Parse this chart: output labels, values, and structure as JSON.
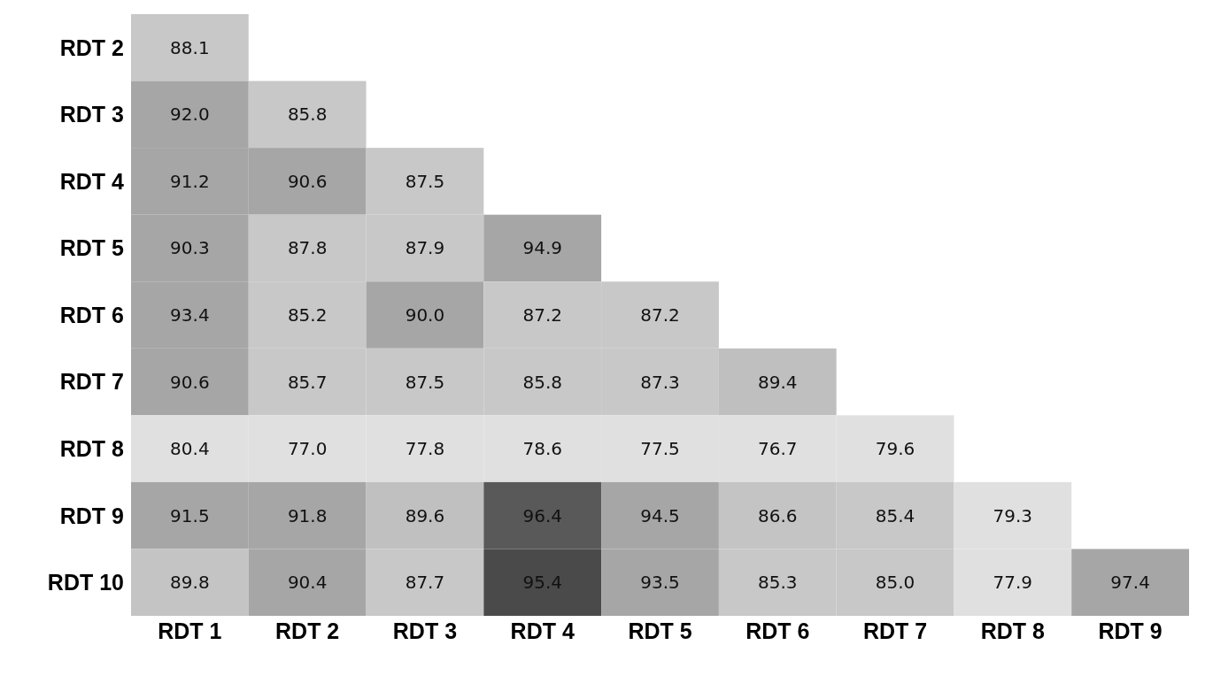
{
  "chart_data": {
    "type": "heatmap",
    "categories": [
      "RDT 1",
      "RDT 2",
      "RDT 3",
      "RDT 4",
      "RDT 5",
      "RDT 6",
      "RDT 7",
      "RDT 8",
      "RDT 9"
    ],
    "y_categories": [
      "RDT 2",
      "RDT 3",
      "RDT 4",
      "RDT 5",
      "RDT 6",
      "RDT 7",
      "RDT 8",
      "RDT 9",
      "RDT 10"
    ],
    "cells": [
      [
        88.1,
        null,
        null,
        null,
        null,
        null,
        null,
        null,
        null
      ],
      [
        92.0,
        85.8,
        null,
        null,
        null,
        null,
        null,
        null,
        null
      ],
      [
        91.2,
        90.6,
        87.5,
        null,
        null,
        null,
        null,
        null,
        null
      ],
      [
        90.3,
        87.8,
        87.9,
        94.9,
        null,
        null,
        null,
        null,
        null
      ],
      [
        93.4,
        85.2,
        90.0,
        87.2,
        87.2,
        null,
        null,
        null,
        null
      ],
      [
        90.6,
        85.7,
        87.5,
        85.8,
        87.3,
        89.4,
        null,
        null,
        null
      ],
      [
        80.4,
        77.0,
        77.8,
        78.6,
        77.5,
        76.7,
        79.6,
        null,
        null
      ],
      [
        91.5,
        91.8,
        89.6,
        96.4,
        94.5,
        86.6,
        85.4,
        79.3,
        null
      ],
      [
        89.8,
        90.4,
        87.7,
        95.4,
        93.5,
        85.3,
        85.0,
        77.9,
        97.4
      ]
    ],
    "cell_labels": [
      [
        "88.1",
        null,
        null,
        null,
        null,
        null,
        null,
        null,
        null
      ],
      [
        "92.0",
        "85.8",
        null,
        null,
        null,
        null,
        null,
        null,
        null
      ],
      [
        "91.2",
        "90.6",
        "87.5",
        null,
        null,
        null,
        null,
        null,
        null
      ],
      [
        "90.3",
        "87.8",
        "87.9",
        "94.9",
        null,
        null,
        null,
        null,
        null
      ],
      [
        "93.4",
        "85.2",
        "90.0",
        "87.2",
        "87.2",
        null,
        null,
        null,
        null
      ],
      [
        "90.6",
        "85.7",
        "87.5",
        "85.8",
        "87.3",
        "89.4",
        null,
        null,
        null
      ],
      [
        "80.4",
        "77.0",
        "77.8",
        "78.6",
        "77.5",
        "76.7",
        "79.6",
        null,
        null
      ],
      [
        "91.5",
        "91.8",
        "89.6",
        "96.4",
        "94.5",
        "86.6",
        "85.4",
        "79.3",
        null
      ],
      [
        "89.8",
        "90.4",
        "87.7",
        "95.4",
        "93.5",
        "85.3",
        "85.0",
        "77.9",
        "97.4"
      ]
    ],
    "colors": [
      [
        "#c8c8c8",
        null,
        null,
        null,
        null,
        null,
        null,
        null,
        null
      ],
      [
        "#a6a6a6",
        "#c8c8c8",
        null,
        null,
        null,
        null,
        null,
        null,
        null
      ],
      [
        "#a6a6a6",
        "#a6a6a6",
        "#c8c8c8",
        null,
        null,
        null,
        null,
        null,
        null
      ],
      [
        "#a6a6a6",
        "#c8c8c8",
        "#c8c8c8",
        "#a6a6a6",
        null,
        null,
        null,
        null,
        null
      ],
      [
        "#a6a6a6",
        "#c8c8c8",
        "#a6a6a6",
        "#c8c8c8",
        "#c8c8c8",
        null,
        null,
        null,
        null
      ],
      [
        "#a6a6a6",
        "#c8c8c8",
        "#c8c8c8",
        "#c8c8c8",
        "#c8c8c8",
        "#bfbfbf",
        null,
        null,
        null
      ],
      [
        "#e0e0e0",
        "#e0e0e0",
        "#e0e0e0",
        "#e0e0e0",
        "#e0e0e0",
        "#e0e0e0",
        "#e0e0e0",
        null,
        null
      ],
      [
        "#a6a6a6",
        "#a6a6a6",
        "#c0c0c0",
        "#595959",
        "#a6a6a6",
        "#c4c4c4",
        "#c8c8c8",
        "#e0e0e0",
        null
      ],
      [
        "#c4c4c4",
        "#a6a6a6",
        "#c8c8c8",
        "#4a4a4a",
        "#a6a6a6",
        "#c8c8c8",
        "#c8c8c8",
        "#e0e0e0",
        "#a6a6a6"
      ]
    ]
  }
}
